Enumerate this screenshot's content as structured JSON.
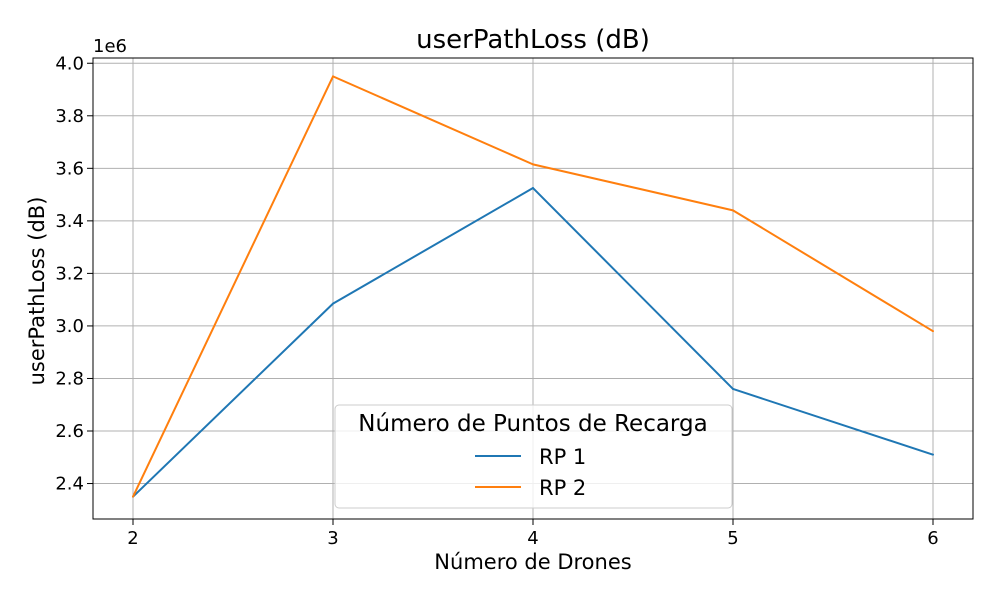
{
  "chart_data": {
    "type": "line",
    "title": "userPathLoss (dB)",
    "xlabel": "Número de Drones",
    "ylabel": "userPathLoss (dB)",
    "y_offset_label": "1e6",
    "x": [
      2,
      3,
      4,
      5,
      6
    ],
    "x_ticks": [
      "2",
      "3",
      "4",
      "5",
      "6"
    ],
    "y_ticks": [
      "2.4",
      "2.6",
      "2.8",
      "3.0",
      "3.2",
      "3.4",
      "3.6",
      "3.8",
      "4.0"
    ],
    "y_tick_values": [
      2.4,
      2.6,
      2.8,
      3.0,
      3.2,
      3.4,
      3.6,
      3.8,
      4.0
    ],
    "xlim": [
      1.8,
      6.2
    ],
    "ylim": [
      2.265,
      4.02
    ],
    "grid": true,
    "legend": {
      "title": "Número de Puntos de Recarga",
      "placement": "lower-center"
    },
    "series": [
      {
        "name": "RP 1",
        "color": "#1f77b4",
        "values": [
          2.35,
          3.085,
          3.525,
          2.76,
          2.51
        ]
      },
      {
        "name": "RP 2",
        "color": "#ff7f0e",
        "values": [
          2.35,
          3.95,
          3.615,
          3.44,
          2.98
        ]
      }
    ]
  }
}
